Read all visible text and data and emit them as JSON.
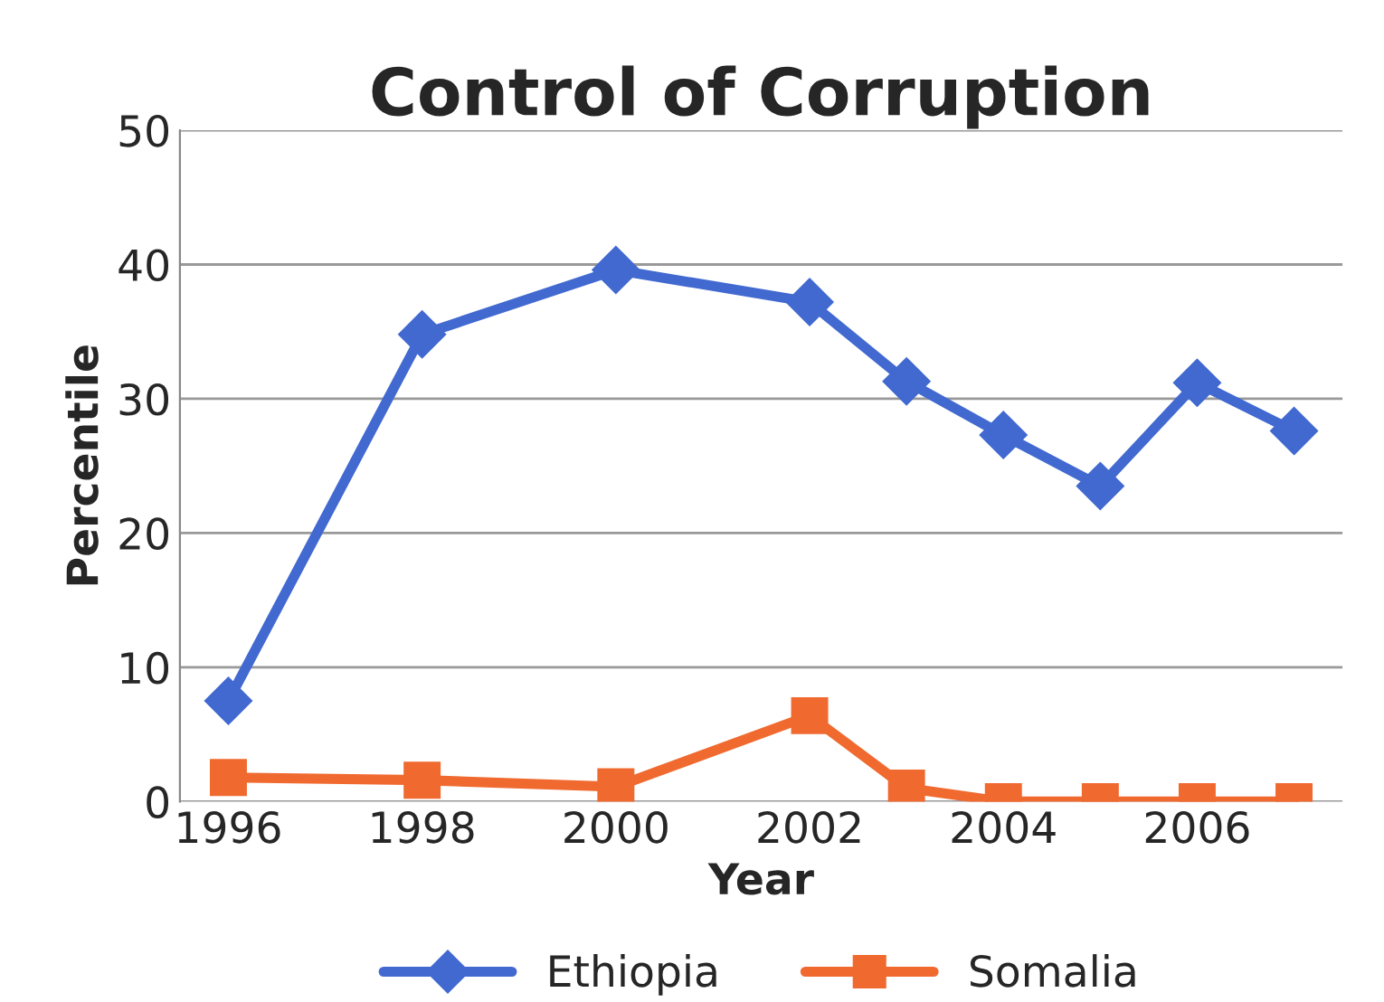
{
  "chart_data": {
    "type": "line",
    "title": "Control of Corruption",
    "xlabel": "Year",
    "ylabel": "Percentile",
    "x": [
      1996,
      1998,
      2000,
      2002,
      2003,
      2004,
      2005,
      2006,
      2007
    ],
    "series": [
      {
        "name": "Ethiopia",
        "color": "#4169d0",
        "marker": "diamond",
        "values": [
          7.5,
          34.8,
          39.6,
          37.2,
          31.3,
          27.3,
          23.5,
          31.2,
          27.6
        ]
      },
      {
        "name": "Somalia",
        "color": "#f06a30",
        "marker": "square",
        "values": [
          1.8,
          1.6,
          1.1,
          6.4,
          1.0,
          0,
          0,
          0,
          0
        ]
      }
    ],
    "xlim": [
      1995.5,
      2007.5
    ],
    "xticks": [
      1996,
      1998,
      2000,
      2002,
      2004,
      2006
    ],
    "ylim": [
      0,
      50
    ],
    "yticks": [
      0,
      10,
      20,
      30,
      40,
      50
    ],
    "grid": "y",
    "legend": "bottom",
    "line_style": "solid"
  }
}
